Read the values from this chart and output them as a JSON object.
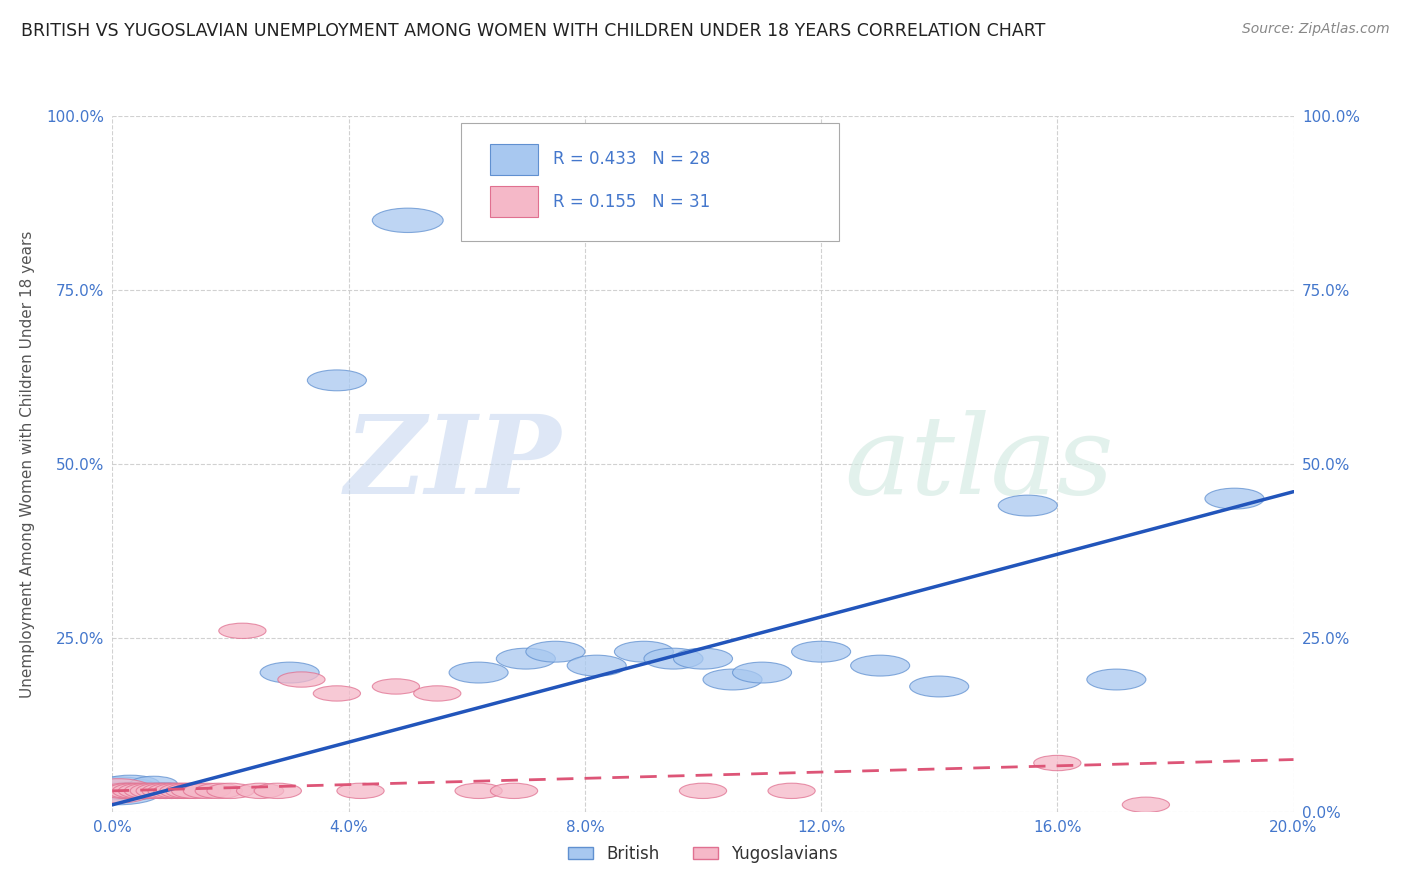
{
  "title": "BRITISH VS YUGOSLAVIAN UNEMPLOYMENT AMONG WOMEN WITH CHILDREN UNDER 18 YEARS CORRELATION CHART",
  "source": "Source: ZipAtlas.com",
  "ylabel": "Unemployment Among Women with Children Under 18 years",
  "watermark_zip": "ZIP",
  "watermark_atlas": "atlas",
  "british_R": 0.433,
  "british_N": 28,
  "yugoslav_R": 0.155,
  "yugoslav_N": 31,
  "xlim": [
    0.0,
    0.2
  ],
  "ylim": [
    0.0,
    1.0
  ],
  "xticks": [
    0.0,
    0.04,
    0.08,
    0.12,
    0.16,
    0.2
  ],
  "yticks": [
    0.0,
    0.25,
    0.5,
    0.75,
    1.0
  ],
  "xtick_labels": [
    "0.0%",
    "4.0%",
    "8.0%",
    "12.0%",
    "16.0%",
    "20.0%"
  ],
  "ytick_labels_left": [
    "",
    "25.0%",
    "50.0%",
    "75.0%",
    "100.0%"
  ],
  "ytick_labels_right": [
    "0.0%",
    "25.0%",
    "50.0%",
    "75.0%",
    "100.0%"
  ],
  "british_color": "#a8c8f0",
  "yugoslav_color": "#f5b8c8",
  "british_edge_color": "#6090d0",
  "yugoslav_edge_color": "#e07090",
  "british_line_color": "#2255bb",
  "yugoslav_line_color": "#dd5577",
  "background_color": "#ffffff",
  "grid_color": "#cccccc",
  "title_color": "#222222",
  "tick_color": "#4477cc",
  "british_x": [
    0.001,
    0.002,
    0.003,
    0.004,
    0.005,
    0.006,
    0.007,
    0.008,
    0.009,
    0.01,
    0.03,
    0.038,
    0.05,
    0.062,
    0.07,
    0.075,
    0.082,
    0.09,
    0.095,
    0.1,
    0.105,
    0.11,
    0.12,
    0.13,
    0.14,
    0.155,
    0.17,
    0.19
  ],
  "british_y": [
    0.03,
    0.03,
    0.04,
    0.03,
    0.03,
    0.03,
    0.04,
    0.03,
    0.03,
    0.03,
    0.2,
    0.62,
    0.85,
    0.2,
    0.22,
    0.23,
    0.21,
    0.23,
    0.22,
    0.22,
    0.19,
    0.2,
    0.23,
    0.21,
    0.18,
    0.44,
    0.19,
    0.45
  ],
  "british_w": [
    0.015,
    0.01,
    0.01,
    0.01,
    0.008,
    0.008,
    0.008,
    0.008,
    0.008,
    0.008,
    0.01,
    0.01,
    0.012,
    0.01,
    0.01,
    0.01,
    0.01,
    0.01,
    0.01,
    0.01,
    0.01,
    0.01,
    0.01,
    0.01,
    0.01,
    0.01,
    0.01,
    0.01
  ],
  "british_h": [
    0.04,
    0.025,
    0.025,
    0.025,
    0.022,
    0.022,
    0.022,
    0.022,
    0.022,
    0.022,
    0.03,
    0.03,
    0.035,
    0.03,
    0.03,
    0.03,
    0.03,
    0.03,
    0.03,
    0.03,
    0.03,
    0.03,
    0.03,
    0.03,
    0.03,
    0.03,
    0.03,
    0.03
  ],
  "yugoslav_x": [
    0.001,
    0.002,
    0.003,
    0.004,
    0.005,
    0.006,
    0.007,
    0.008,
    0.009,
    0.01,
    0.011,
    0.012,
    0.013,
    0.014,
    0.016,
    0.018,
    0.02,
    0.022,
    0.025,
    0.028,
    0.032,
    0.038,
    0.042,
    0.048,
    0.055,
    0.062,
    0.068,
    0.1,
    0.115,
    0.16,
    0.175
  ],
  "yugoslav_y": [
    0.03,
    0.03,
    0.03,
    0.03,
    0.03,
    0.03,
    0.03,
    0.03,
    0.03,
    0.03,
    0.03,
    0.03,
    0.03,
    0.03,
    0.03,
    0.03,
    0.03,
    0.26,
    0.03,
    0.03,
    0.19,
    0.17,
    0.03,
    0.18,
    0.17,
    0.03,
    0.03,
    0.03,
    0.03,
    0.07,
    0.01
  ],
  "yugoslav_w": [
    0.012,
    0.008,
    0.008,
    0.008,
    0.008,
    0.008,
    0.008,
    0.008,
    0.008,
    0.008,
    0.008,
    0.008,
    0.008,
    0.008,
    0.008,
    0.008,
    0.008,
    0.008,
    0.008,
    0.008,
    0.008,
    0.008,
    0.008,
    0.008,
    0.008,
    0.008,
    0.008,
    0.008,
    0.008,
    0.008,
    0.008
  ],
  "yugoslav_h": [
    0.035,
    0.022,
    0.022,
    0.022,
    0.022,
    0.022,
    0.022,
    0.022,
    0.022,
    0.022,
    0.022,
    0.022,
    0.022,
    0.022,
    0.022,
    0.022,
    0.022,
    0.022,
    0.022,
    0.022,
    0.022,
    0.022,
    0.022,
    0.022,
    0.022,
    0.022,
    0.022,
    0.022,
    0.022,
    0.022,
    0.022
  ],
  "british_line_x0": 0.0,
  "british_line_y0": 0.01,
  "british_line_x1": 0.2,
  "british_line_y1": 0.46,
  "yugoslav_line_x0": 0.0,
  "yugoslav_line_y0": 0.03,
  "yugoslav_line_x1": 0.2,
  "yugoslav_line_y1": 0.075
}
